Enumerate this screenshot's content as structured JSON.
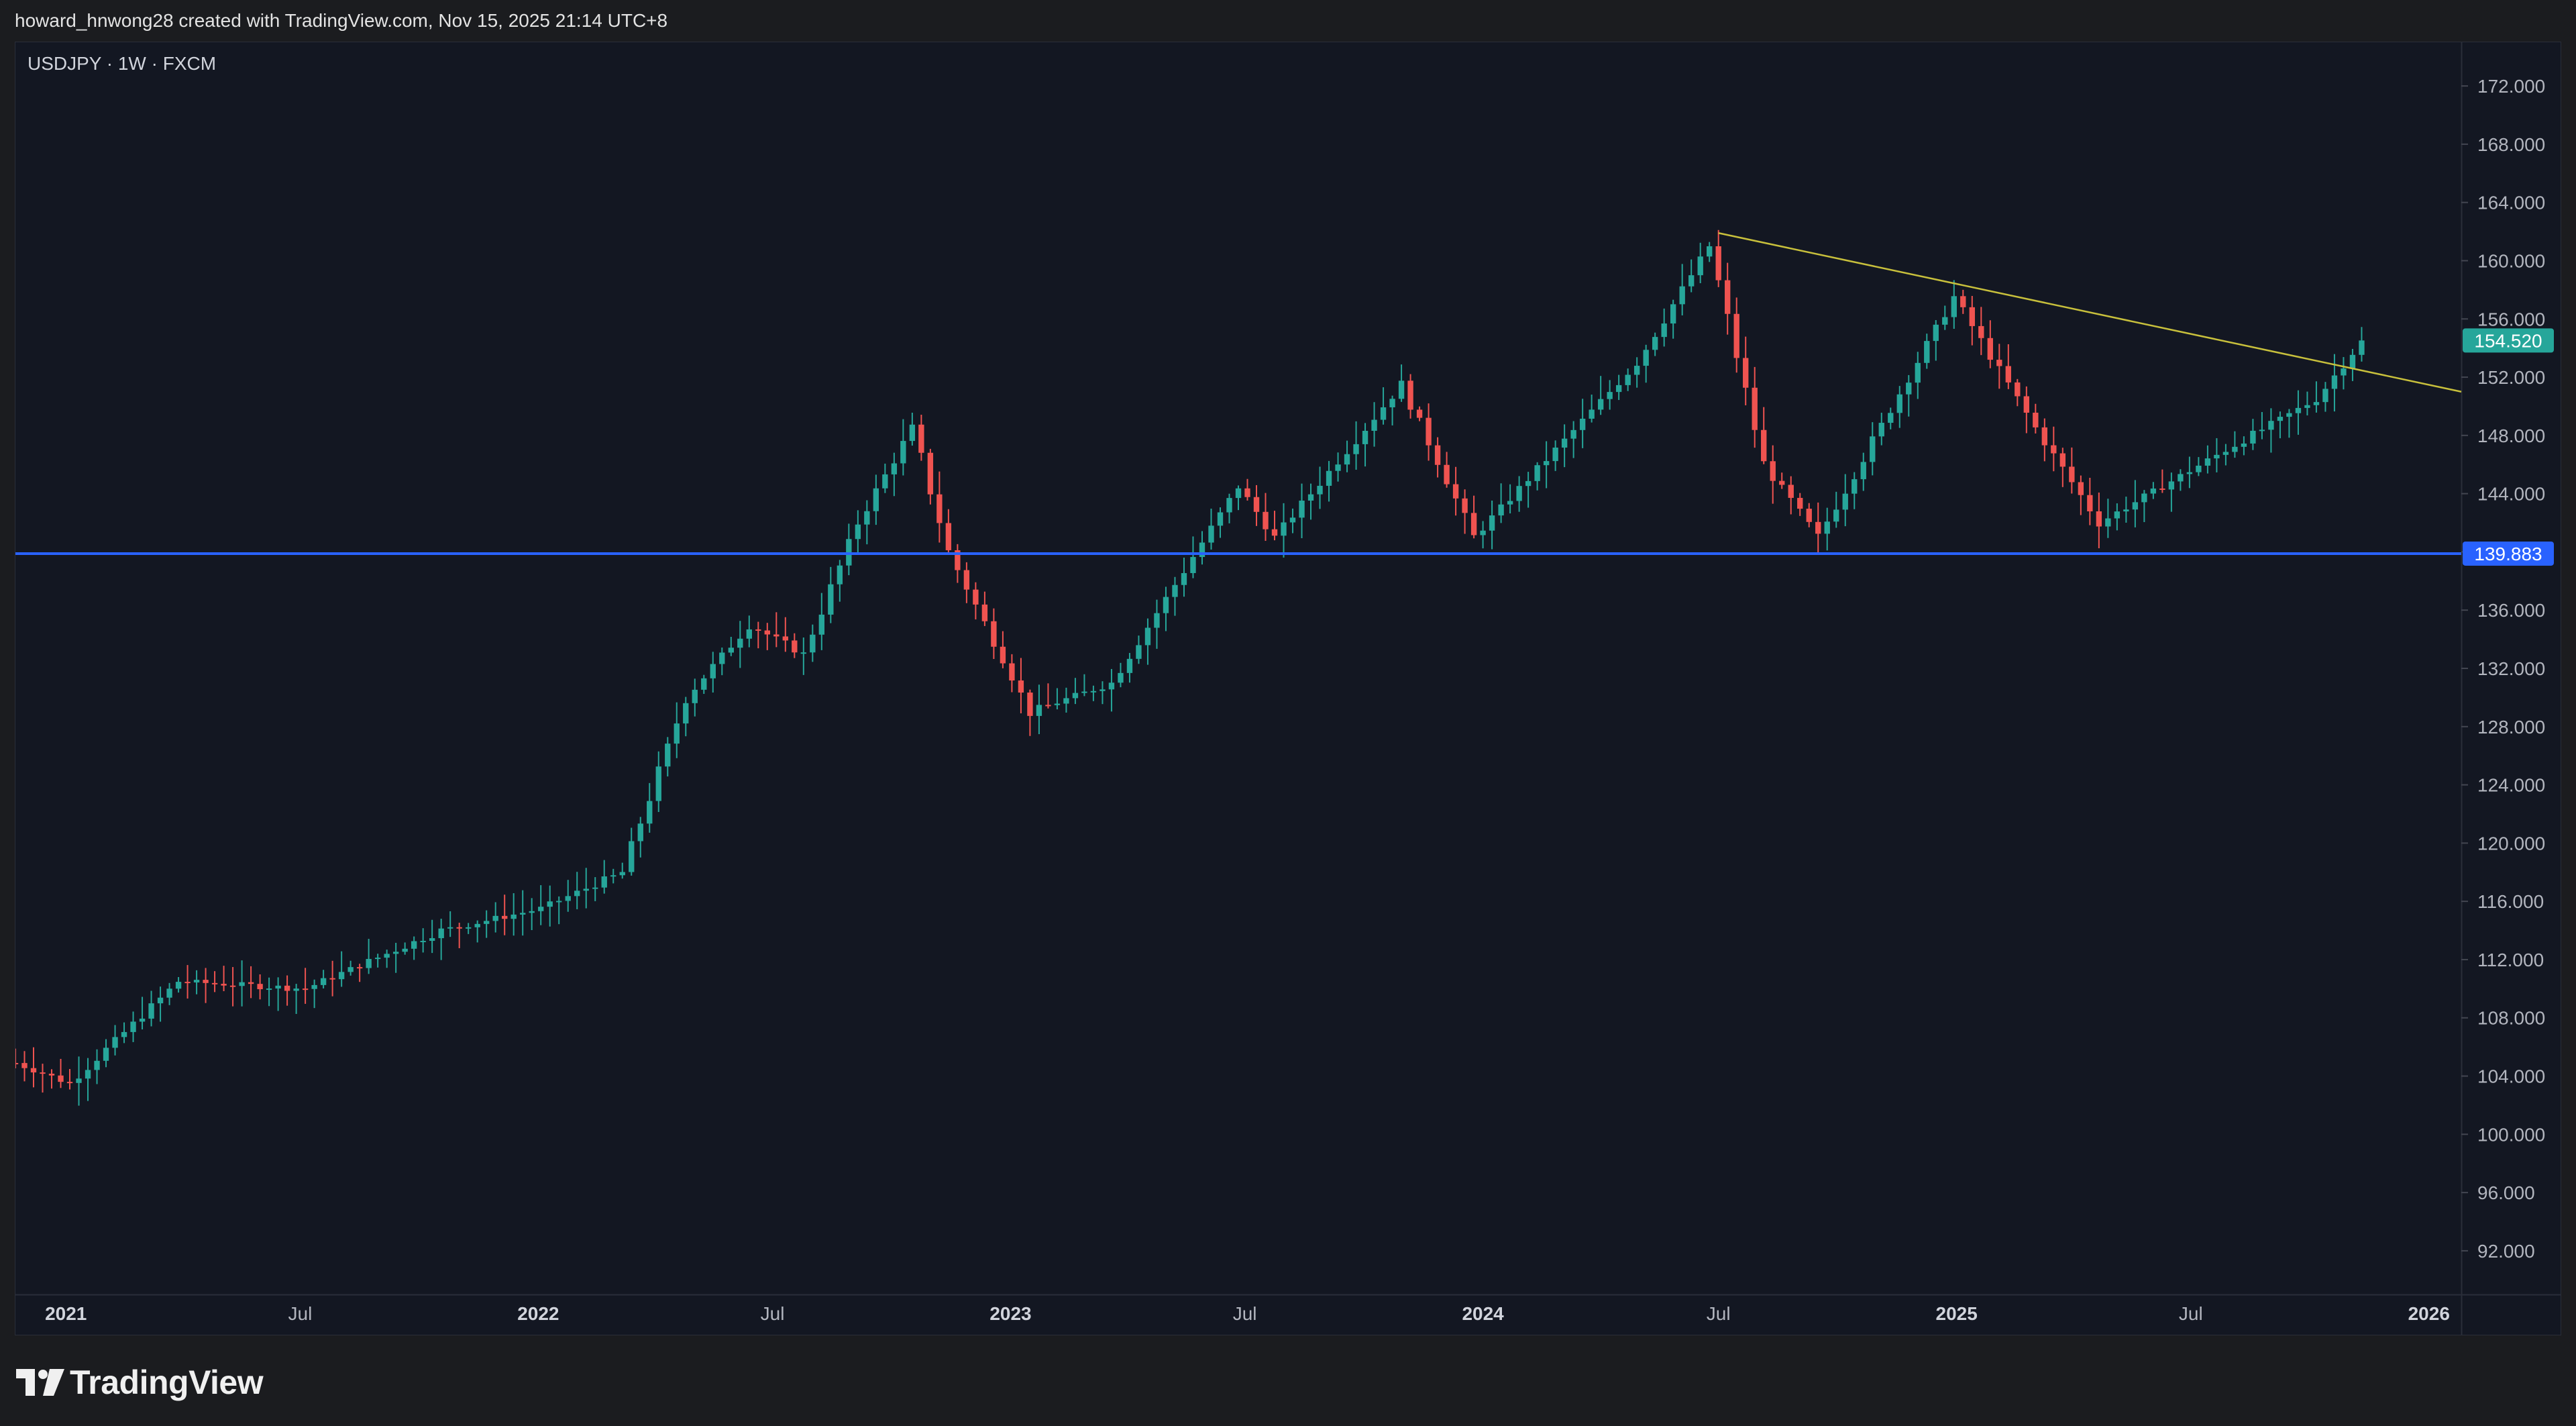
{
  "header": {
    "caption": "howard_hnwong28 created with TradingView.com, Nov 15, 2025 21:14 UTC+8"
  },
  "footer": {
    "brand": "TradingView"
  },
  "colors": {
    "background": "#131722",
    "up": "#26a69a",
    "down": "#ef5350",
    "support_line": "#2962ff",
    "trendline": "#c8c03c",
    "axis_text": "#b2b5be"
  },
  "chart_data": {
    "type": "candlestick",
    "title": "USDJPY · 1W · FXCM",
    "symbol": "USDJPY",
    "interval": "1W",
    "source": "FXCM",
    "ylim": [
      89,
      175
    ],
    "y_ticks": [
      "172.000",
      "168.000",
      "164.000",
      "160.000",
      "156.000",
      "152.000",
      "148.000",
      "144.000",
      "140.000",
      "136.000",
      "132.000",
      "128.000",
      "124.000",
      "120.000",
      "116.000",
      "112.000",
      "108.000",
      "104.000",
      "100.000",
      "96.000",
      "92.000"
    ],
    "x_range": [
      "2020-11-23",
      "2026-01-26"
    ],
    "x_ticks": [
      {
        "date": "2021-01-01",
        "label": "2021",
        "bold": true
      },
      {
        "date": "2021-07-01",
        "label": "Jul",
        "bold": false
      },
      {
        "date": "2022-01-01",
        "label": "2022",
        "bold": true
      },
      {
        "date": "2022-07-01",
        "label": "Jul",
        "bold": false
      },
      {
        "date": "2023-01-01",
        "label": "2023",
        "bold": true
      },
      {
        "date": "2023-07-01",
        "label": "Jul",
        "bold": false
      },
      {
        "date": "2024-01-01",
        "label": "2024",
        "bold": true
      },
      {
        "date": "2024-07-01",
        "label": "Jul",
        "bold": false
      },
      {
        "date": "2025-01-01",
        "label": "2025",
        "bold": true
      },
      {
        "date": "2025-07-01",
        "label": "Jul",
        "bold": false
      },
      {
        "date": "2026-01-01",
        "label": "2026",
        "bold": true
      }
    ],
    "current_price": {
      "value": 154.52,
      "label": "154.520"
    },
    "horizontal_level": {
      "value": 139.883,
      "label": "139.883"
    },
    "trendline": {
      "start": {
        "date": "2024-07-01",
        "price": 161.9
      },
      "end": {
        "date": "2026-01-26",
        "price": 151.0
      }
    },
    "key_points": [
      {
        "date": "2020-11-23",
        "close": 104.9
      },
      {
        "date": "2021-01-04",
        "close": 103.5
      },
      {
        "date": "2021-03-29",
        "close": 110.5
      },
      {
        "date": "2021-07-05",
        "close": 110.0
      },
      {
        "date": "2021-10-18",
        "close": 114.0
      },
      {
        "date": "2022-01-03",
        "close": 115.5
      },
      {
        "date": "2022-03-07",
        "close": 118.0
      },
      {
        "date": "2022-04-25",
        "close": 130.0
      },
      {
        "date": "2022-06-13",
        "close": 135.0
      },
      {
        "date": "2022-07-25",
        "close": 133.0
      },
      {
        "date": "2022-09-05",
        "close": 142.0
      },
      {
        "date": "2022-10-17",
        "close": 148.5
      },
      {
        "date": "2022-11-14",
        "close": 140.0
      },
      {
        "date": "2023-01-16",
        "close": 129.0
      },
      {
        "date": "2023-03-20",
        "close": 131.0
      },
      {
        "date": "2023-06-26",
        "close": 144.5
      },
      {
        "date": "2023-07-24",
        "close": 141.0
      },
      {
        "date": "2023-10-30",
        "close": 151.5
      },
      {
        "date": "2023-12-25",
        "close": 141.0
      },
      {
        "date": "2024-04-29",
        "close": 153.0
      },
      {
        "date": "2024-06-24",
        "close": 161.0
      },
      {
        "date": "2024-08-05",
        "close": 146.0
      },
      {
        "date": "2024-09-16",
        "close": 141.0
      },
      {
        "date": "2024-12-30",
        "close": 157.5
      },
      {
        "date": "2025-03-03",
        "close": 148.5
      },
      {
        "date": "2025-04-21",
        "close": 142.0
      },
      {
        "date": "2025-07-28",
        "close": 147.0
      },
      {
        "date": "2025-10-06",
        "close": 150.5
      },
      {
        "date": "2025-11-10",
        "close": 154.52
      }
    ]
  }
}
